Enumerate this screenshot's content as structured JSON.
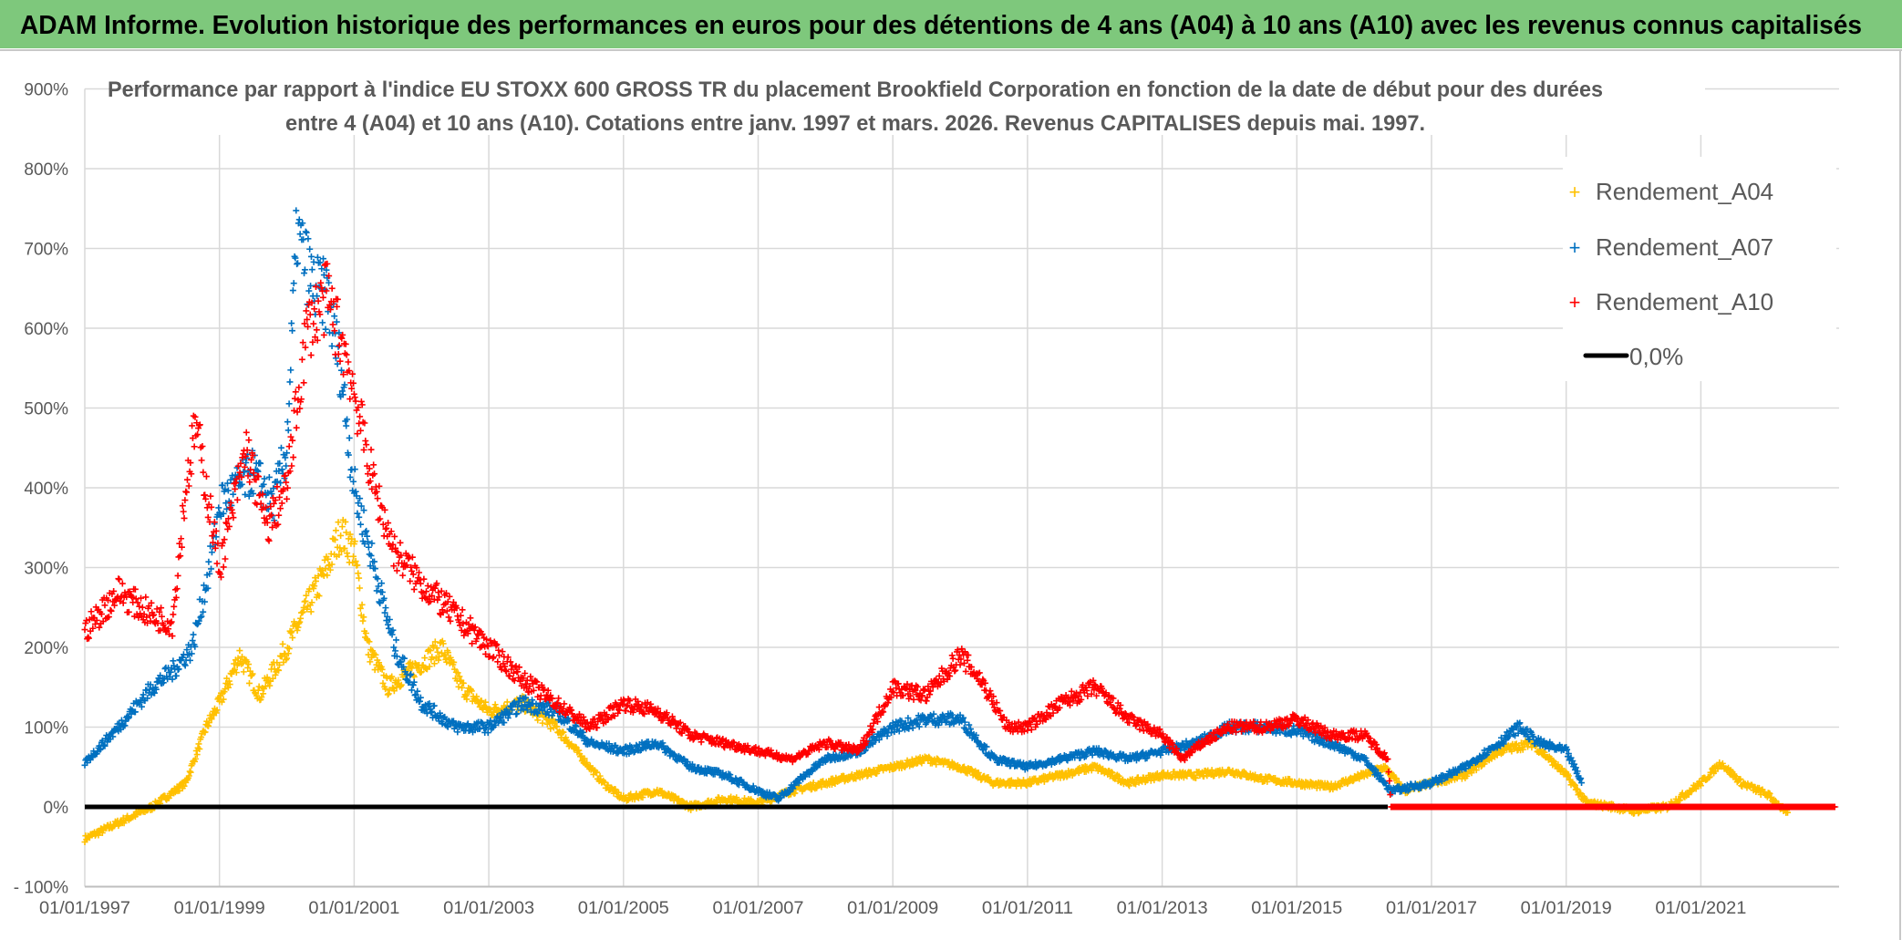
{
  "header": {
    "title": "ADAM Informe. Evolution historique des performances en euros pour des détentions de 4 ans (A04) à 10 ans (A10) avec les revenus connus capitalisés"
  },
  "colors": {
    "header_bg": "#7ec87c",
    "A04": "#ffc000",
    "A07": "#0070c0",
    "A10": "#ff0000",
    "zero": "#000000",
    "grid": "#d9d9d9"
  },
  "chart_data": {
    "type": "scatter",
    "title_lines": [
      "Performance par rapport à l'indice EU STOXX 600 GROSS TR  du placement Brookfield Corporation en fonction de la date de début pour des durées",
      "entre 4 (A04) et 10 ans (A10). Cotations entre janv. 1997 et mars. 2026. Revenus CAPITALISES depuis mai. 1997."
    ],
    "x_type": "date",
    "xlim": [
      "1997-01-01",
      "2023-01-15"
    ],
    "ylim": [
      -100,
      900
    ],
    "y_unit": "%",
    "grid": true,
    "legend_position": "top-right",
    "x_tick_labels": [
      "01/01/1997",
      "01/01/1999",
      "01/01/2001",
      "01/01/2003",
      "01/01/2005",
      "01/01/2007",
      "01/01/2009",
      "01/01/2011",
      "01/01/2013",
      "01/01/2015",
      "01/01/2017",
      "01/01/2019",
      "01/01/2021"
    ],
    "y_tick_labels": [
      "900%",
      "800%",
      "700%",
      "600%",
      "500%",
      "400%",
      "300%",
      "200%",
      "100%",
      "0%",
      "- 100%"
    ],
    "series": [
      {
        "name": "Rendement_A04",
        "marker": "plus",
        "points": [
          [
            1997.0,
            -40
          ],
          [
            1997.5,
            -20
          ],
          [
            1998.0,
            0
          ],
          [
            1998.5,
            30
          ],
          [
            1998.8,
            100
          ],
          [
            1999.0,
            130
          ],
          [
            1999.3,
            190
          ],
          [
            1999.6,
            140
          ],
          [
            2000.0,
            200
          ],
          [
            2000.3,
            250
          ],
          [
            2000.6,
            300
          ],
          [
            2000.8,
            345
          ],
          [
            2001.0,
            320
          ],
          [
            2001.2,
            200
          ],
          [
            2001.5,
            150
          ],
          [
            2002.0,
            180
          ],
          [
            2002.3,
            200
          ],
          [
            2002.6,
            150
          ],
          [
            2003.0,
            120
          ],
          [
            2003.5,
            130
          ],
          [
            2004.0,
            100
          ],
          [
            2004.3,
            70
          ],
          [
            2004.7,
            30
          ],
          [
            2005.0,
            10
          ],
          [
            2005.5,
            20
          ],
          [
            2006.0,
            0
          ],
          [
            2006.5,
            10
          ],
          [
            2007.0,
            5
          ],
          [
            2007.5,
            20
          ],
          [
            2008.0,
            30
          ],
          [
            2008.5,
            40
          ],
          [
            2009.0,
            50
          ],
          [
            2009.5,
            60
          ],
          [
            2010.0,
            50
          ],
          [
            2010.5,
            30
          ],
          [
            2011.0,
            30
          ],
          [
            2011.5,
            40
          ],
          [
            2012.0,
            50
          ],
          [
            2012.5,
            30
          ],
          [
            2013.0,
            40
          ],
          [
            2013.5,
            40
          ],
          [
            2014.0,
            45
          ],
          [
            2014.5,
            35
          ],
          [
            2015.0,
            30
          ],
          [
            2015.5,
            25
          ],
          [
            2016.0,
            40
          ],
          [
            2016.3,
            50
          ],
          [
            2016.6,
            20
          ],
          [
            2017.0,
            30
          ],
          [
            2017.5,
            40
          ],
          [
            2018.0,
            70
          ],
          [
            2018.5,
            80
          ],
          [
            2019.0,
            40
          ],
          [
            2019.3,
            5
          ],
          [
            2019.7,
            0
          ],
          [
            2020.0,
            -5
          ],
          [
            2020.5,
            0
          ],
          [
            2021.0,
            30
          ],
          [
            2021.3,
            55
          ],
          [
            2021.6,
            30
          ],
          [
            2022.0,
            15
          ],
          [
            2022.3,
            -10
          ]
        ]
      },
      {
        "name": "Rendement_A07",
        "marker": "plus",
        "points": [
          [
            1997.0,
            55
          ],
          [
            1997.5,
            100
          ],
          [
            1998.0,
            150
          ],
          [
            1998.3,
            170
          ],
          [
            1998.6,
            200
          ],
          [
            1998.9,
            320
          ],
          [
            1999.0,
            380
          ],
          [
            1999.5,
            420
          ],
          [
            1999.8,
            380
          ],
          [
            2000.0,
            450
          ],
          [
            2000.15,
            720
          ],
          [
            2000.4,
            650
          ],
          [
            2000.6,
            640
          ],
          [
            2000.8,
            550
          ],
          [
            2001.0,
            400
          ],
          [
            2001.3,
            300
          ],
          [
            2001.6,
            200
          ],
          [
            2002.0,
            130
          ],
          [
            2002.5,
            100
          ],
          [
            2003.0,
            100
          ],
          [
            2003.5,
            130
          ],
          [
            2004.0,
            120
          ],
          [
            2004.5,
            80
          ],
          [
            2005.0,
            70
          ],
          [
            2005.5,
            80
          ],
          [
            2006.0,
            50
          ],
          [
            2006.5,
            40
          ],
          [
            2007.0,
            20
          ],
          [
            2007.3,
            10
          ],
          [
            2007.7,
            40
          ],
          [
            2008.0,
            60
          ],
          [
            2008.5,
            70
          ],
          [
            2009.0,
            100
          ],
          [
            2009.5,
            110
          ],
          [
            2010.0,
            110
          ],
          [
            2010.5,
            60
          ],
          [
            2011.0,
            50
          ],
          [
            2011.5,
            60
          ],
          [
            2012.0,
            70
          ],
          [
            2012.5,
            60
          ],
          [
            2013.0,
            70
          ],
          [
            2013.5,
            80
          ],
          [
            2014.0,
            100
          ],
          [
            2014.5,
            100
          ],
          [
            2015.0,
            95
          ],
          [
            2015.5,
            80
          ],
          [
            2016.0,
            60
          ],
          [
            2016.4,
            20
          ],
          [
            2017.0,
            30
          ],
          [
            2017.5,
            50
          ],
          [
            2018.0,
            80
          ],
          [
            2018.3,
            100
          ],
          [
            2018.6,
            80
          ],
          [
            2019.0,
            70
          ],
          [
            2019.24,
            30
          ]
        ]
      },
      {
        "name": "Rendement_A10",
        "marker": "plus",
        "points": [
          [
            1997.0,
            220
          ],
          [
            1997.5,
            270
          ],
          [
            1998.0,
            240
          ],
          [
            1998.3,
            230
          ],
          [
            1998.5,
            400
          ],
          [
            1998.65,
            480
          ],
          [
            1999.0,
            300
          ],
          [
            1999.4,
            450
          ],
          [
            1999.7,
            350
          ],
          [
            2000.0,
            400
          ],
          [
            2000.3,
            600
          ],
          [
            2000.6,
            640
          ],
          [
            2000.9,
            560
          ],
          [
            2001.0,
            520
          ],
          [
            2001.3,
            400
          ],
          [
            2001.6,
            320
          ],
          [
            2002.0,
            280
          ],
          [
            2002.5,
            240
          ],
          [
            2003.0,
            200
          ],
          [
            2003.5,
            160
          ],
          [
            2004.0,
            130
          ],
          [
            2004.5,
            100
          ],
          [
            2005.0,
            130
          ],
          [
            2005.5,
            120
          ],
          [
            2006.0,
            90
          ],
          [
            2006.5,
            80
          ],
          [
            2007.0,
            70
          ],
          [
            2007.5,
            60
          ],
          [
            2008.0,
            80
          ],
          [
            2008.5,
            70
          ],
          [
            2009.0,
            150
          ],
          [
            2009.5,
            140
          ],
          [
            2010.0,
            190
          ],
          [
            2010.3,
            160
          ],
          [
            2010.7,
            100
          ],
          [
            2011.0,
            100
          ],
          [
            2011.5,
            130
          ],
          [
            2012.0,
            150
          ],
          [
            2012.5,
            110
          ],
          [
            2013.0,
            90
          ],
          [
            2013.3,
            60
          ],
          [
            2013.6,
            80
          ],
          [
            2014.0,
            100
          ],
          [
            2014.5,
            100
          ],
          [
            2015.0,
            110
          ],
          [
            2015.5,
            90
          ],
          [
            2016.0,
            90
          ],
          [
            2016.35,
            60
          ],
          [
            2016.4,
            0
          ],
          [
            2023.0,
            0
          ]
        ]
      }
    ],
    "reference_line": {
      "name": "0,0%",
      "y": 0
    }
  }
}
